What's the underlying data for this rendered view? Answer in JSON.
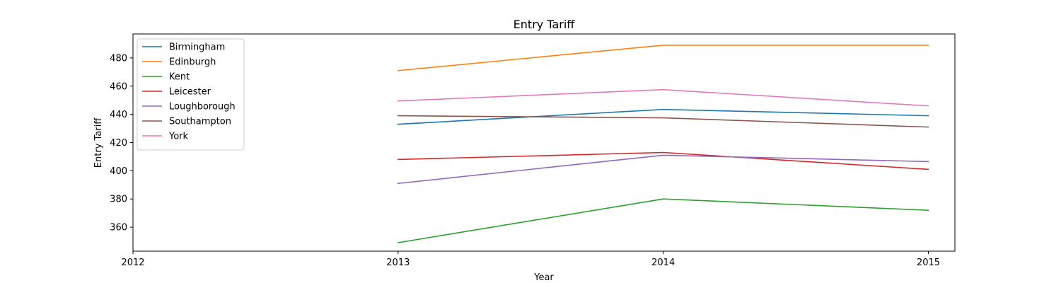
{
  "chart_data": {
    "type": "line",
    "title": "Entry Tariff",
    "xlabel": "Year",
    "ylabel": "Entry Tariff",
    "x": [
      2013,
      2014,
      2015
    ],
    "x_ticks": [
      "2012",
      "2013",
      "2014",
      "2015"
    ],
    "y_ticks": [
      "360",
      "380",
      "400",
      "420",
      "440",
      "460",
      "480"
    ],
    "xlim": [
      2012,
      2015.1
    ],
    "ylim": [
      343,
      497
    ],
    "grid": false,
    "legend_position": "upper-left",
    "series": [
      {
        "name": "Birmingham",
        "color": "#1f77b4",
        "values": [
          433,
          443.5,
          439
        ]
      },
      {
        "name": "Edinburgh",
        "color": "#ff7f0e",
        "values": [
          471,
          489,
          489
        ]
      },
      {
        "name": "Kent",
        "color": "#2ca02c",
        "values": [
          349,
          380,
          372
        ]
      },
      {
        "name": "Leicester",
        "color": "#d62728",
        "values": [
          408,
          413,
          401
        ]
      },
      {
        "name": "Loughborough",
        "color": "#9467bd",
        "values": [
          391,
          411,
          406.5
        ]
      },
      {
        "name": "Southampton",
        "color": "#8c564b",
        "values": [
          439,
          437.5,
          431
        ]
      },
      {
        "name": "York",
        "color": "#e377c2",
        "values": [
          449.5,
          457.5,
          446
        ]
      }
    ]
  }
}
